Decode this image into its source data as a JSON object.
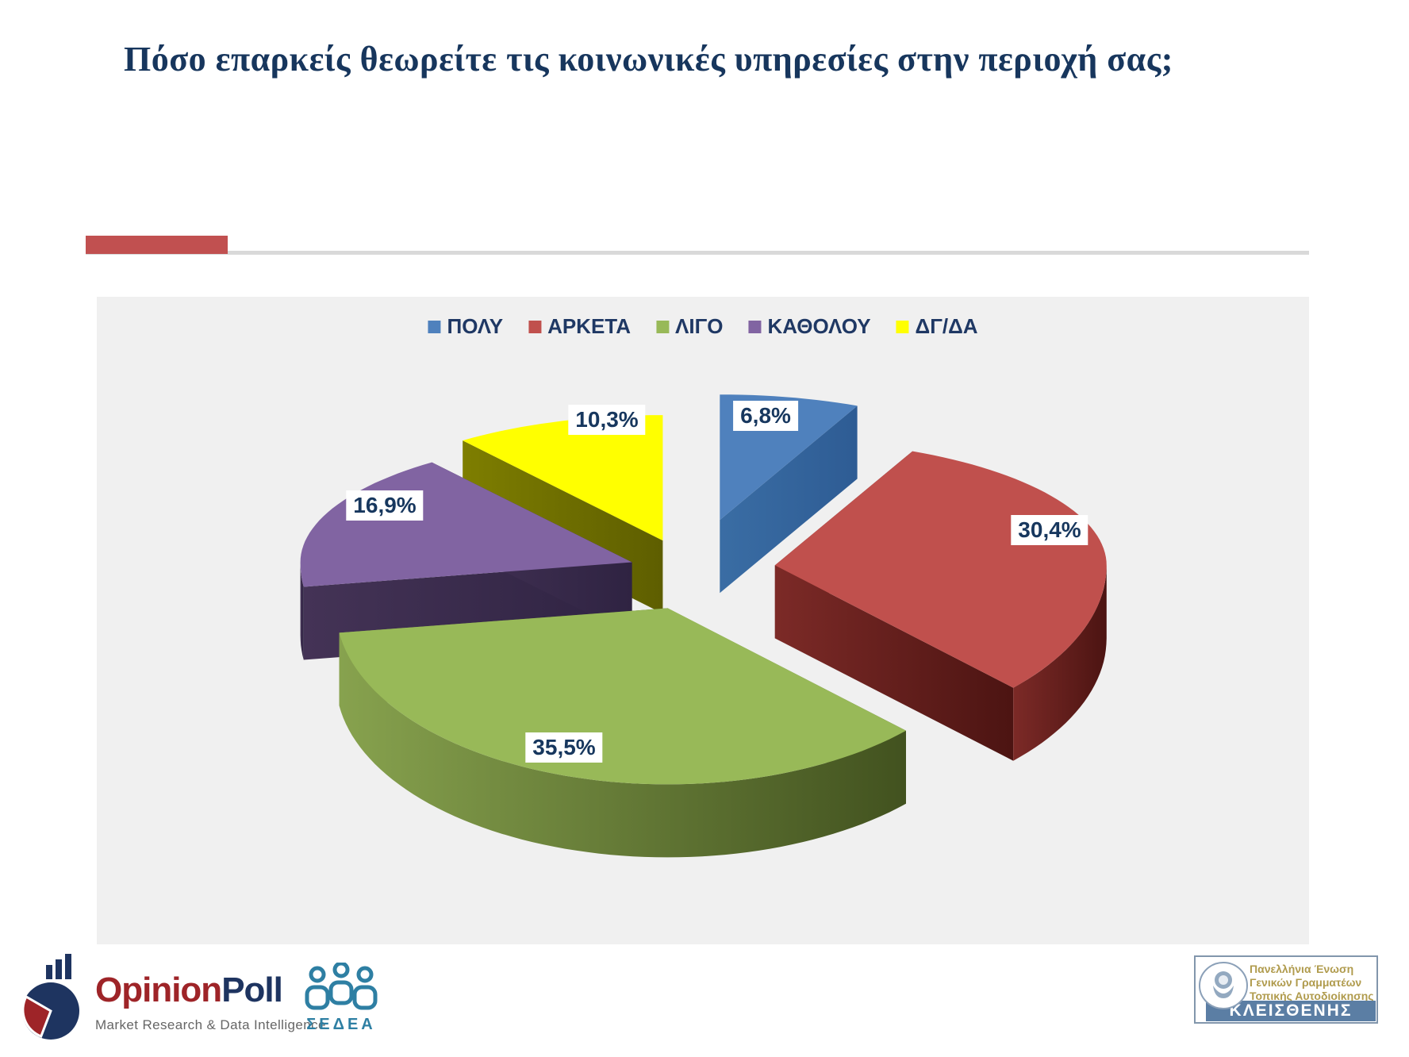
{
  "slide": {
    "title": "Πόσο επαρκείς θεωρείτε τις κοινωνικές υπηρεσίες στην περιοχή σας;"
  },
  "divider": {
    "accent_color": "#C15050",
    "line_color": "#D9D9D9"
  },
  "chart_data": {
    "type": "pie",
    "style": "3d-exploded-pie",
    "legend_position": "top",
    "start_angle_deg": 0,
    "direction": "clockwise",
    "number_format": "percent-decimal-comma",
    "categories": [
      "ΠΟΛΥ",
      "ΑΡΚΕΤΑ",
      "ΛΙΓΟ",
      "ΚΑΘΟΛΟΥ",
      "ΔΓ/ΔΑ"
    ],
    "values": [
      6.8,
      30.4,
      35.5,
      16.9,
      10.3
    ],
    "labels": [
      "6,8%",
      "30,4%",
      "35,5%",
      "16,9%",
      "10,3%"
    ],
    "colors": [
      "#4F81BD",
      "#C0504D",
      "#98B958",
      "#8164A2",
      "#FFFF00"
    ],
    "wall_colors_from": [
      "#3A6DA4",
      "#7C2A27",
      "#87A24E",
      "#443356",
      "#7E7E00"
    ],
    "wall_colors_to": [
      "#2E5C94",
      "#4C1412",
      "#42521F",
      "#2F2342",
      "#5E5E00"
    ],
    "legend_text_color": "#1F3864",
    "label_text_color": "#17375E",
    "background": "#F0F0F0"
  },
  "footer": {
    "opinionpoll": {
      "name_primary": "Opinion",
      "name_secondary": "Poll",
      "tagline": "Market Research & Data Intelligence",
      "primary_color": "#9E2428",
      "secondary_color": "#1E3460"
    },
    "sedea": {
      "name": "ΣΕΔΕΑ",
      "color": "#2E7FA3"
    },
    "kleisthenis": {
      "org_lines": [
        "Πανελλήνια Ένωση",
        "Γενικών Γραμματέων",
        "Τοπικής Αυτοδιοίκησης"
      ],
      "name": "ΚΛΕΙΣΘΕΝΗΣ",
      "text_color": "#B09B4D",
      "banner_color": "#5B7EA4"
    }
  }
}
